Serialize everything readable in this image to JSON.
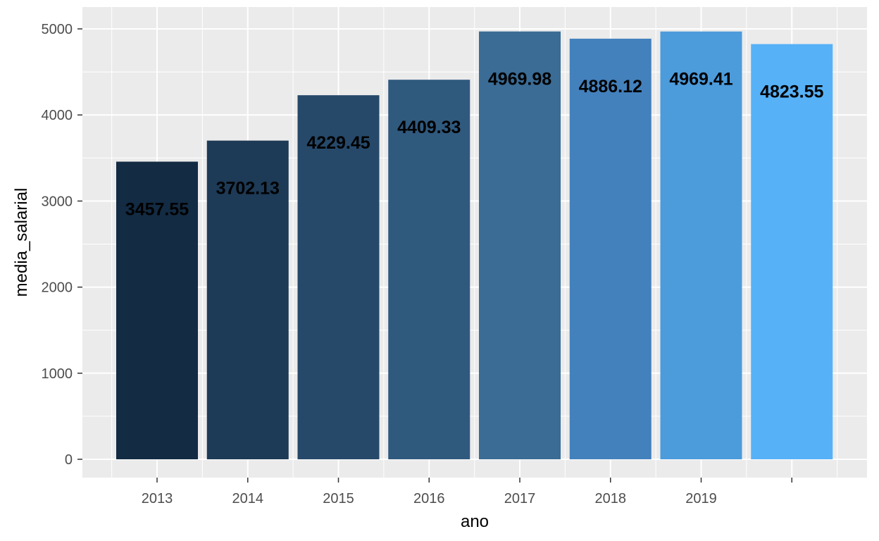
{
  "chart_data": {
    "type": "bar",
    "xlabel": "ano",
    "ylabel": "media_salarial",
    "ylim": [
      0,
      5000
    ],
    "y_ticks": [
      0,
      1000,
      2000,
      3000,
      4000,
      5000
    ],
    "x_tick_labels": [
      "2013",
      "2014",
      "2015",
      "2016",
      "2017",
      "2018",
      "2019",
      ""
    ],
    "values": [
      3457.55,
      3702.13,
      4229.45,
      4409.33,
      4969.98,
      4886.12,
      4969.41,
      4823.55
    ],
    "value_labels": [
      "3457.55",
      "3702.13",
      "4229.45",
      "4409.33",
      "4969.98",
      "4886.12",
      "4969.41",
      "4823.55"
    ],
    "bar_colors": [
      "#132B43",
      "#1D3A56",
      "#26496A",
      "#30597E",
      "#3A6C95",
      "#4381BD",
      "#4C9BDB",
      "#56B1F7"
    ],
    "panel_background": "#EBEBEB",
    "grid": true,
    "legend": "none"
  }
}
